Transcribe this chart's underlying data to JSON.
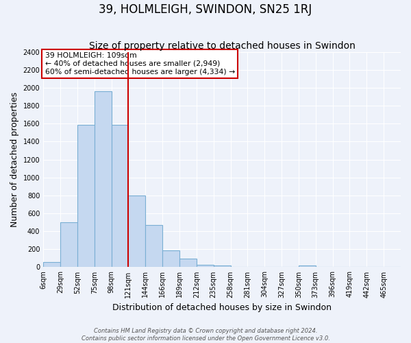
{
  "title": "39, HOLMLEIGH, SWINDON, SN25 1RJ",
  "subtitle": "Size of property relative to detached houses in Swindon",
  "xlabel": "Distribution of detached houses by size in Swindon",
  "ylabel": "Number of detached properties",
  "bar_labels": [
    "6sqm",
    "29sqm",
    "52sqm",
    "75sqm",
    "98sqm",
    "121sqm",
    "144sqm",
    "166sqm",
    "189sqm",
    "212sqm",
    "235sqm",
    "258sqm",
    "281sqm",
    "304sqm",
    "327sqm",
    "350sqm",
    "373sqm",
    "396sqm",
    "419sqm",
    "442sqm",
    "465sqm"
  ],
  "bar_values": [
    55,
    500,
    1585,
    1960,
    1590,
    795,
    470,
    190,
    95,
    30,
    20,
    0,
    0,
    0,
    0,
    20,
    0,
    0,
    0,
    0,
    0
  ],
  "bar_color": "#c5d8f0",
  "bar_edge_color": "#7aafd4",
  "vline_index": 4.35,
  "vline_color": "#cc0000",
  "ylim": [
    0,
    2400
  ],
  "yticks": [
    0,
    200,
    400,
    600,
    800,
    1000,
    1200,
    1400,
    1600,
    1800,
    2000,
    2200,
    2400
  ],
  "annotation_title": "39 HOLMLEIGH: 109sqm",
  "annotation_line1": "← 40% of detached houses are smaller (2,949)",
  "annotation_line2": "60% of semi-detached houses are larger (4,334) →",
  "annotation_box_color": "#ffffff",
  "annotation_box_edge": "#cc0000",
  "footer1": "Contains HM Land Registry data © Crown copyright and database right 2024.",
  "footer2": "Contains public sector information licensed under the Open Government Licence v3.0.",
  "bg_color": "#eef2fa",
  "grid_color": "#ffffff",
  "title_fontsize": 12,
  "subtitle_fontsize": 10,
  "ylabel_fontsize": 9,
  "xlabel_fontsize": 9,
  "tick_fontsize": 7,
  "footer_fontsize": 6
}
